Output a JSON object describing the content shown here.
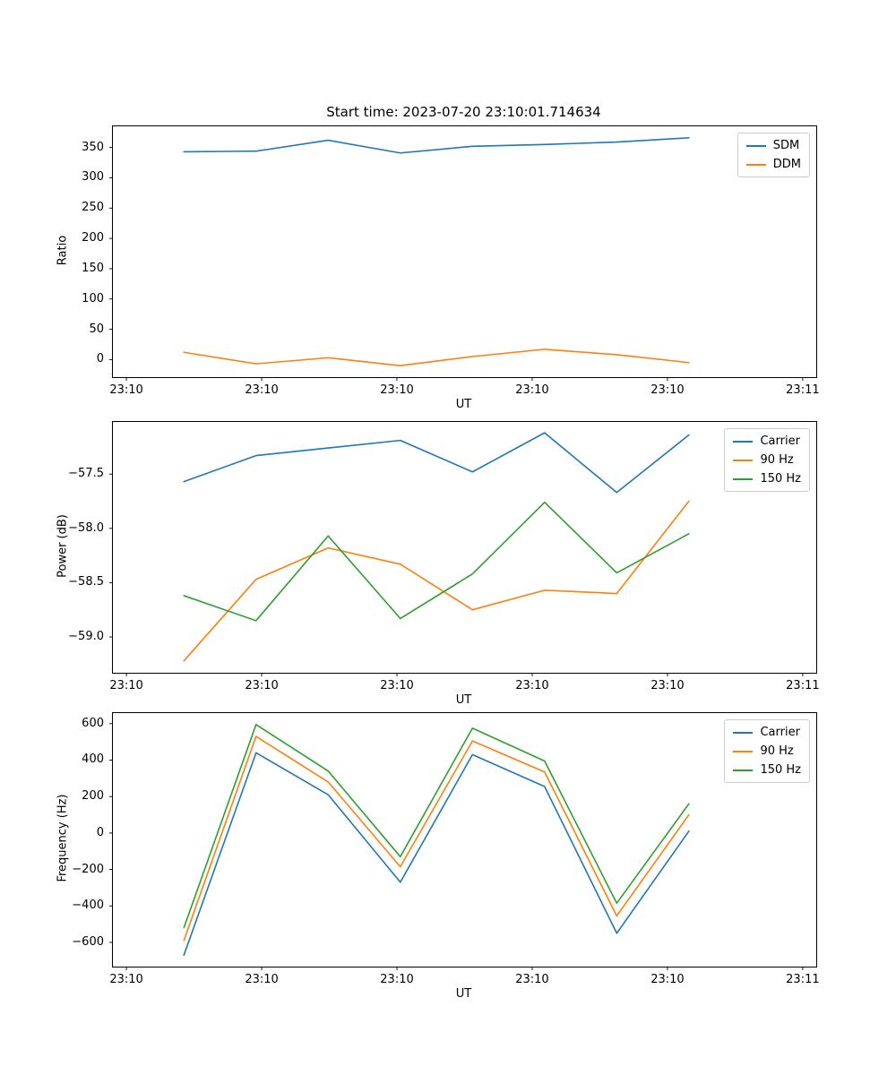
{
  "figure": {
    "background": "#ffffff",
    "accent_colors": {
      "blue": "#1f77b4",
      "orange": "#ff7f0e",
      "green": "#2ca02c"
    }
  },
  "chart_data": [
    {
      "type": "line",
      "title": "Start time: 2023-07-20 23:10:01.714634",
      "xlabel": "UT",
      "ylabel": "Ratio",
      "legend_position": "upper right",
      "grid": false,
      "x": [
        5.1,
        11.5,
        17.9,
        24.3,
        30.7,
        37.1,
        43.5,
        49.9
      ],
      "xlim": [
        -1.2,
        61.2
      ],
      "xticks": [
        0,
        12,
        24,
        36,
        48,
        60
      ],
      "xtick_labels": [
        "23:10",
        "23:10",
        "23:10",
        "23:10",
        "23:10",
        "23:11"
      ],
      "ylim": [
        -29,
        385
      ],
      "yticks": [
        0,
        50,
        100,
        150,
        200,
        250,
        300,
        350
      ],
      "ytick_labels": [
        "0",
        "50",
        "100",
        "150",
        "200",
        "250",
        "300",
        "350"
      ],
      "series": [
        {
          "name": "SDM",
          "color": "#1f77b4",
          "values": [
            343,
            344,
            362,
            341,
            352,
            355,
            359,
            366
          ]
        },
        {
          "name": "DDM",
          "color": "#ff7f0e",
          "values": [
            12,
            -7,
            3,
            -10,
            5,
            17,
            8,
            -5
          ]
        }
      ]
    },
    {
      "type": "line",
      "title": "",
      "xlabel": "UT",
      "ylabel": "Power (dB)",
      "legend_position": "upper right",
      "grid": false,
      "x": [
        5.1,
        11.5,
        17.9,
        24.3,
        30.7,
        37.1,
        43.5,
        49.9
      ],
      "xlim": [
        -1.2,
        61.2
      ],
      "xticks": [
        0,
        12,
        24,
        36,
        48,
        60
      ],
      "xtick_labels": [
        "23:10",
        "23:10",
        "23:10",
        "23:10",
        "23:10",
        "23:11"
      ],
      "ylim": [
        -59.33,
        -57.02
      ],
      "yticks": [
        -59.0,
        -58.5,
        -58.0,
        -57.5
      ],
      "ytick_labels": [
        "−59.0",
        "−58.5",
        "−58.0",
        "−57.5"
      ],
      "series": [
        {
          "name": "Carrier",
          "color": "#1f77b4",
          "values": [
            -57.57,
            -57.33,
            -57.26,
            -57.19,
            -57.48,
            -57.12,
            -57.67,
            -57.14
          ]
        },
        {
          "name": "90 Hz",
          "color": "#ff7f0e",
          "values": [
            -59.22,
            -58.47,
            -58.18,
            -58.33,
            -58.75,
            -58.57,
            -58.6,
            -57.75
          ]
        },
        {
          "name": "150 Hz",
          "color": "#2ca02c",
          "values": [
            -58.62,
            -58.85,
            -58.07,
            -58.83,
            -58.42,
            -57.76,
            -58.41,
            -58.05
          ]
        }
      ]
    },
    {
      "type": "line",
      "title": "",
      "xlabel": "UT",
      "ylabel": "Frequency (Hz)",
      "legend_position": "upper right",
      "grid": false,
      "x": [
        5.1,
        11.5,
        17.9,
        24.3,
        30.7,
        37.1,
        43.5,
        49.9
      ],
      "xlim": [
        -1.2,
        61.2
      ],
      "xticks": [
        0,
        12,
        24,
        36,
        48,
        60
      ],
      "xtick_labels": [
        "23:10",
        "23:10",
        "23:10",
        "23:10",
        "23:10",
        "23:11"
      ],
      "ylim": [
        -733,
        658
      ],
      "yticks": [
        -600,
        -400,
        -200,
        0,
        200,
        400,
        600
      ],
      "ytick_labels": [
        "−600",
        "−400",
        "−200",
        "0",
        "200",
        "400",
        "600"
      ],
      "series": [
        {
          "name": "Carrier",
          "color": "#1f77b4",
          "values": [
            -670,
            440,
            210,
            -270,
            430,
            255,
            -550,
            10
          ]
        },
        {
          "name": "90 Hz",
          "color": "#ff7f0e",
          "values": [
            -590,
            530,
            280,
            -185,
            505,
            335,
            -455,
            100
          ]
        },
        {
          "name": "150 Hz",
          "color": "#2ca02c",
          "values": [
            -520,
            595,
            340,
            -130,
            575,
            395,
            -385,
            160
          ]
        }
      ]
    }
  ]
}
